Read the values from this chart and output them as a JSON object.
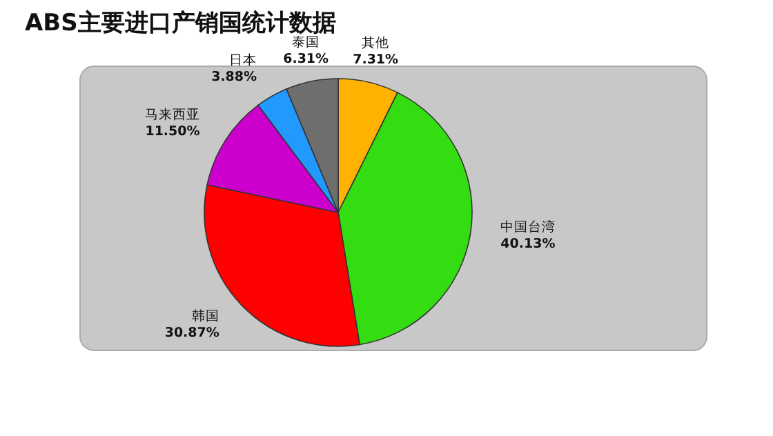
{
  "chart_data": {
    "type": "pie",
    "title": "ABS主要进口产销国统计数据",
    "categories": [
      "其他",
      "中国台湾",
      "韩国",
      "马来西亚",
      "日本",
      "泰国"
    ],
    "values": [
      7.31,
      40.13,
      30.87,
      11.5,
      3.88,
      6.31
    ],
    "value_labels": [
      "7.31%",
      "40.13%",
      "30.87%",
      "11.50%",
      "3.88%",
      "6.31%"
    ],
    "colors": [
      "#ffb300",
      "#33dd11",
      "#ff0000",
      "#cc00cc",
      "#2299ff",
      "#6e6e6e"
    ]
  }
}
